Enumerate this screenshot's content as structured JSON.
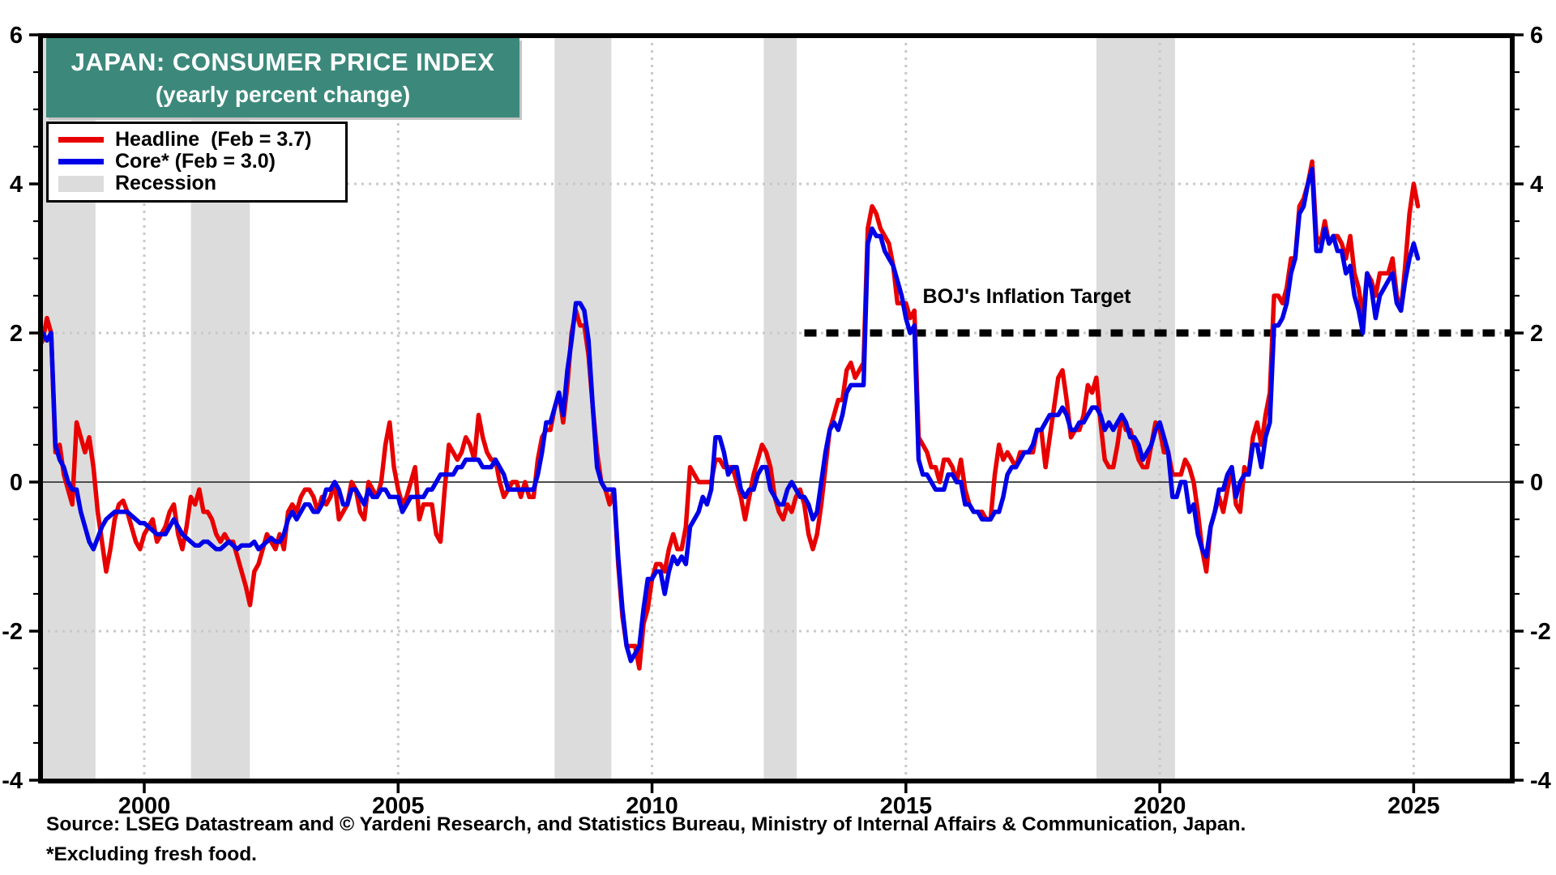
{
  "header": {
    "title": "JAPAN: CONSUMER PRICE INDEX",
    "subtitle": "(yearly percent change)",
    "box_color": "#3C897B"
  },
  "legend": {
    "items": [
      {
        "label": "Headline  (Feb = 3.7)",
        "color": "#e80000",
        "type": "line"
      },
      {
        "label": "Core* (Feb = 3.0)",
        "color": "#0000e8",
        "type": "line"
      },
      {
        "label": "Recession",
        "color": "#dcdcdc",
        "type": "box"
      }
    ]
  },
  "footer": {
    "source": "Source: LSEG Datastream and © Yardeni Research, and Statistics Bureau, Ministry of Internal Affairs & Communication, Japan.",
    "footnote": "*Excluding fresh food."
  },
  "chart_data": {
    "type": "line",
    "title": "JAPAN: CONSUMER PRICE INDEX",
    "subtitle": "(yearly percent change)",
    "frequency": "monthly",
    "x_start": {
      "year": 1997,
      "month": 12
    },
    "x_end": {
      "year": 2025,
      "month": 2
    },
    "xlim": [
      1997.9,
      2027.0
    ],
    "ylim": [
      -4,
      6
    ],
    "y_ticks": [
      6,
      4,
      2,
      0,
      -2,
      -4
    ],
    "y_tick_labels": [
      "6",
      "4",
      "2",
      "0",
      "-2",
      "-4"
    ],
    "y_minor_step": 0.5,
    "x_ticks": [
      2000,
      2005,
      2010,
      2015,
      2020,
      2025
    ],
    "x_tick_labels": [
      "2000",
      "2005",
      "2010",
      "2015",
      "2020",
      "2025"
    ],
    "grid_y_dotted": [
      4,
      2,
      -2
    ],
    "zero_line": 0,
    "grid_color": "#c9c9c9",
    "zero_line_color": "#4d4d4d",
    "recession_color": "#dcdcdc",
    "target_line": {
      "label": "BOJ's Inflation Target",
      "value": 2,
      "start_year": 2013.0,
      "color": "#000000"
    },
    "recessions": [
      [
        1997.92,
        1999.04
      ],
      [
        2000.92,
        2002.08
      ],
      [
        2008.08,
        2009.2
      ],
      [
        2012.2,
        2012.85
      ],
      [
        2018.75,
        2020.3
      ]
    ],
    "series": [
      {
        "name": "Headline",
        "legend_label": "Headline  (Feb = 3.7)",
        "color": "#e80000",
        "latest": {
          "month": "Feb",
          "value": 3.7
        },
        "values": [
          1.8,
          1.9,
          2.2,
          2.0,
          0.4,
          0.5,
          0.1,
          -0.1,
          -0.3,
          0.8,
          0.6,
          0.4,
          0.6,
          0.2,
          -0.4,
          -0.8,
          -1.2,
          -0.9,
          -0.5,
          -0.3,
          -0.25,
          -0.4,
          -0.6,
          -0.8,
          -0.9,
          -0.7,
          -0.6,
          -0.5,
          -0.8,
          -0.7,
          -0.6,
          -0.4,
          -0.3,
          -0.7,
          -0.9,
          -0.6,
          -0.2,
          -0.3,
          -0.1,
          -0.4,
          -0.4,
          -0.5,
          -0.7,
          -0.8,
          -0.7,
          -0.8,
          -0.8,
          -1.0,
          -1.2,
          -1.4,
          -1.65,
          -1.2,
          -1.1,
          -0.9,
          -0.7,
          -0.8,
          -0.9,
          -0.7,
          -0.9,
          -0.4,
          -0.3,
          -0.4,
          -0.2,
          -0.1,
          -0.1,
          -0.2,
          -0.4,
          -0.2,
          -0.3,
          -0.2,
          0.0,
          -0.5,
          -0.4,
          -0.3,
          0.0,
          -0.1,
          -0.4,
          -0.5,
          0.0,
          -0.1,
          -0.2,
          0.0,
          0.5,
          0.8,
          0.2,
          -0.1,
          -0.3,
          -0.2,
          0.0,
          0.2,
          -0.5,
          -0.3,
          -0.3,
          -0.3,
          -0.7,
          -0.8,
          -0.1,
          0.5,
          0.4,
          0.3,
          0.4,
          0.6,
          0.5,
          0.3,
          0.9,
          0.6,
          0.4,
          0.3,
          0.3,
          0.0,
          -0.2,
          -0.1,
          0.0,
          0.0,
          -0.2,
          0.0,
          -0.2,
          -0.2,
          0.3,
          0.6,
          0.7,
          0.7,
          1.0,
          1.2,
          0.8,
          1.3,
          2.0,
          2.3,
          2.1,
          2.1,
          1.7,
          1.0,
          0.4,
          0.0,
          -0.1,
          -0.3,
          -0.1,
          -1.1,
          -1.8,
          -2.2,
          -2.2,
          -2.2,
          -2.5,
          -1.9,
          -1.7,
          -1.3,
          -1.1,
          -1.1,
          -1.2,
          -0.9,
          -0.7,
          -0.9,
          -0.9,
          -0.6,
          0.2,
          0.1,
          0.0,
          0.0,
          0.0,
          0.0,
          0.3,
          0.3,
          0.2,
          0.2,
          0.2,
          0.0,
          -0.2,
          -0.5,
          -0.2,
          0.1,
          0.3,
          0.5,
          0.4,
          0.2,
          -0.2,
          -0.4,
          -0.5,
          -0.3,
          -0.4,
          -0.2,
          -0.1,
          -0.3,
          -0.7,
          -0.9,
          -0.7,
          -0.3,
          0.2,
          0.7,
          0.9,
          1.1,
          1.1,
          1.5,
          1.6,
          1.4,
          1.5,
          1.6,
          3.4,
          3.7,
          3.6,
          3.4,
          3.3,
          3.2,
          2.9,
          2.4,
          2.4,
          2.4,
          2.2,
          2.3,
          0.6,
          0.5,
          0.4,
          0.2,
          0.2,
          0.0,
          0.3,
          0.3,
          0.2,
          0.0,
          0.3,
          -0.1,
          -0.3,
          -0.4,
          -0.4,
          -0.4,
          -0.5,
          -0.5,
          0.1,
          0.5,
          0.3,
          0.4,
          0.3,
          0.2,
          0.4,
          0.4,
          0.4,
          0.4,
          0.7,
          0.7,
          0.2,
          0.6,
          1.0,
          1.4,
          1.5,
          1.1,
          0.6,
          0.7,
          0.7,
          0.9,
          1.3,
          1.2,
          1.4,
          0.8,
          0.3,
          0.2,
          0.2,
          0.5,
          0.9,
          0.7,
          0.7,
          0.5,
          0.3,
          0.2,
          0.2,
          0.5,
          0.8,
          0.7,
          0.4,
          0.4,
          0.1,
          0.1,
          0.1,
          0.3,
          0.2,
          0.0,
          -0.4,
          -0.9,
          -1.2,
          -0.6,
          -0.4,
          -0.2,
          -0.4,
          -0.1,
          0.2,
          -0.3,
          -0.4,
          0.2,
          0.1,
          0.6,
          0.8,
          0.5,
          0.9,
          1.2,
          2.5,
          2.5,
          2.4,
          2.6,
          3.0,
          3.0,
          3.7,
          3.8,
          4.0,
          4.3,
          3.3,
          3.2,
          3.5,
          3.2,
          3.3,
          3.3,
          3.2,
          3.0,
          3.3,
          2.8,
          2.6,
          2.2,
          2.8,
          2.7,
          2.5,
          2.8,
          2.8,
          2.8,
          3.0,
          2.5,
          2.3,
          2.9,
          3.6,
          4.0,
          3.7
        ]
      },
      {
        "name": "Core",
        "legend_label": "Core* (Feb = 3.0)",
        "color": "#0000e8",
        "latest": {
          "month": "Feb",
          "value": 3.0
        },
        "values": [
          2.0,
          2.0,
          1.9,
          2.0,
          0.5,
          0.3,
          0.2,
          0.0,
          -0.1,
          -0.1,
          -0.4,
          -0.6,
          -0.8,
          -0.9,
          -0.75,
          -0.6,
          -0.5,
          -0.45,
          -0.4,
          -0.4,
          -0.4,
          -0.4,
          -0.45,
          -0.5,
          -0.55,
          -0.55,
          -0.6,
          -0.65,
          -0.7,
          -0.7,
          -0.7,
          -0.6,
          -0.5,
          -0.6,
          -0.7,
          -0.75,
          -0.8,
          -0.85,
          -0.85,
          -0.8,
          -0.8,
          -0.85,
          -0.9,
          -0.9,
          -0.85,
          -0.8,
          -0.85,
          -0.9,
          -0.85,
          -0.85,
          -0.85,
          -0.8,
          -0.9,
          -0.85,
          -0.8,
          -0.75,
          -0.8,
          -0.8,
          -0.7,
          -0.5,
          -0.4,
          -0.5,
          -0.4,
          -0.3,
          -0.3,
          -0.4,
          -0.4,
          -0.3,
          -0.1,
          -0.1,
          0.0,
          -0.1,
          -0.3,
          -0.3,
          -0.1,
          -0.1,
          -0.2,
          -0.3,
          -0.1,
          -0.2,
          -0.2,
          -0.1,
          -0.1,
          -0.2,
          -0.2,
          -0.2,
          -0.4,
          -0.3,
          -0.2,
          -0.2,
          -0.2,
          -0.2,
          -0.1,
          -0.1,
          0.0,
          0.1,
          0.1,
          0.1,
          0.1,
          0.2,
          0.2,
          0.3,
          0.3,
          0.3,
          0.3,
          0.2,
          0.2,
          0.2,
          0.3,
          0.2,
          0.1,
          -0.1,
          -0.1,
          -0.1,
          -0.1,
          -0.1,
          -0.1,
          -0.1,
          0.1,
          0.4,
          0.8,
          0.8,
          1.0,
          1.2,
          0.9,
          1.5,
          1.9,
          2.4,
          2.4,
          2.3,
          1.9,
          1.0,
          0.2,
          0.0,
          -0.1,
          -0.1,
          -0.1,
          -1.0,
          -1.7,
          -2.2,
          -2.4,
          -2.3,
          -2.2,
          -1.7,
          -1.3,
          -1.3,
          -1.2,
          -1.2,
          -1.5,
          -1.2,
          -1.0,
          -1.1,
          -1.0,
          -1.1,
          -0.6,
          -0.5,
          -0.4,
          -0.2,
          -0.3,
          -0.1,
          0.6,
          0.6,
          0.4,
          0.1,
          0.2,
          0.2,
          -0.1,
          -0.2,
          -0.1,
          -0.1,
          0.1,
          0.2,
          0.2,
          -0.1,
          -0.2,
          -0.3,
          -0.3,
          -0.1,
          0.0,
          -0.1,
          -0.2,
          -0.2,
          -0.3,
          -0.5,
          -0.4,
          0.0,
          0.4,
          0.7,
          0.8,
          0.7,
          0.9,
          1.2,
          1.3,
          1.3,
          1.3,
          1.3,
          3.2,
          3.4,
          3.3,
          3.3,
          3.1,
          3.0,
          2.9,
          2.7,
          2.5,
          2.2,
          2.0,
          2.1,
          0.3,
          0.1,
          0.1,
          0.0,
          -0.1,
          -0.1,
          -0.1,
          0.1,
          0.1,
          0.0,
          0.0,
          -0.3,
          -0.3,
          -0.4,
          -0.4,
          -0.5,
          -0.5,
          -0.5,
          -0.4,
          -0.4,
          -0.2,
          0.1,
          0.2,
          0.2,
          0.3,
          0.4,
          0.4,
          0.5,
          0.7,
          0.7,
          0.8,
          0.9,
          0.9,
          0.9,
          1.0,
          0.9,
          0.7,
          0.7,
          0.8,
          0.8,
          0.9,
          1.0,
          1.0,
          0.9,
          0.7,
          0.8,
          0.7,
          0.8,
          0.9,
          0.8,
          0.6,
          0.6,
          0.5,
          0.3,
          0.4,
          0.5,
          0.7,
          0.8,
          0.6,
          0.4,
          -0.2,
          -0.2,
          0.0,
          0.0,
          -0.4,
          -0.3,
          -0.7,
          -0.9,
          -1.0,
          -0.6,
          -0.4,
          -0.1,
          -0.1,
          0.1,
          0.2,
          -0.2,
          0.0,
          0.1,
          0.1,
          0.5,
          0.5,
          0.2,
          0.6,
          0.8,
          2.1,
          2.1,
          2.2,
          2.4,
          2.8,
          3.0,
          3.6,
          3.7,
          4.0,
          4.2,
          3.1,
          3.1,
          3.4,
          3.2,
          3.3,
          3.1,
          3.1,
          2.8,
          2.9,
          2.5,
          2.3,
          2.0,
          2.8,
          2.6,
          2.2,
          2.5,
          2.6,
          2.7,
          2.8,
          2.4,
          2.3,
          2.7,
          3.0,
          3.2,
          3.0
        ]
      }
    ]
  }
}
